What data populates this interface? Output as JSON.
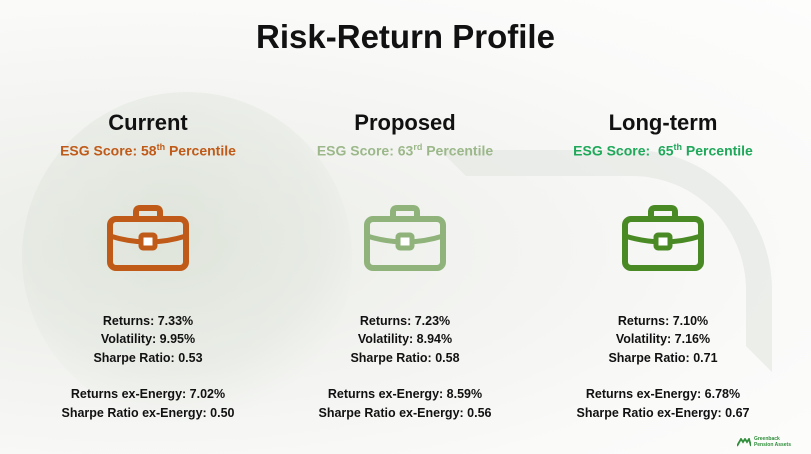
{
  "title": "Risk-Return Profile",
  "columns": [
    {
      "name": "Current",
      "esg_prefix": "ESG Score: 58",
      "esg_sup": "th",
      "esg_suffix": " Percentile",
      "esg_color": "#c05a18",
      "icon": "briefcase-icon",
      "icon_color": "#c05a18",
      "returns": "Returns: 7.33%",
      "volatility": "Volatility: 9.95%",
      "sharpe": "Sharpe Ratio: 0.53",
      "returns_ex": "Returns ex-Energy:  7.02%",
      "sharpe_ex": "Sharpe Ratio ex-Energy: 0.50"
    },
    {
      "name": "Proposed",
      "esg_prefix": "ESG Score: 63",
      "esg_sup": "rd",
      "esg_suffix": " Percentile",
      "esg_color": "#9cb88a",
      "icon": "briefcase-icon",
      "icon_color": "#8fb37a",
      "returns": "Returns: 7.23%",
      "volatility": "Volatility: 8.94%",
      "sharpe": "Sharpe Ratio: 0.58",
      "returns_ex": "Returns  ex-Energy: 8.59%",
      "sharpe_ex": "Sharpe Ratio ex-Energy: 0.56"
    },
    {
      "name": "Long-term",
      "esg_prefix": "ESG Score:  65",
      "esg_sup": "th",
      "esg_suffix": " Percentile",
      "esg_color": "#1fa85a",
      "icon": "briefcase-icon",
      "icon_color": "#4a8a24",
      "returns": "Returns: 7.10%",
      "volatility": "Volatility: 7.16%",
      "sharpe": "Sharpe Ratio: 0.71",
      "returns_ex": "Returns ex-Energy: 6.78%",
      "sharpe_ex": "Sharpe Ratio ex-Energy: 0.67"
    }
  ],
  "brand": {
    "line1": "Greenback",
    "line2": "Pension Assets",
    "icon": "brand-logo-icon",
    "color": "#2f8f3a"
  }
}
